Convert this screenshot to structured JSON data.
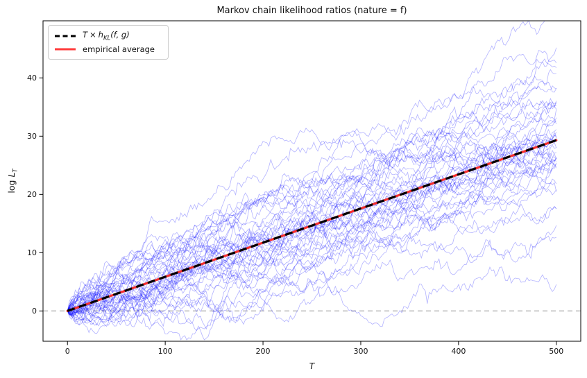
{
  "chart_data": {
    "type": "line",
    "title": "Markov chain likelihood ratios (nature = f)",
    "xlabel": "T",
    "ylabel": "log L_T",
    "ylabel_parts": {
      "prefix": "log",
      "var": "L",
      "sub": "T"
    },
    "xlim": [
      -25,
      525
    ],
    "ylim": [
      -5.2,
      49.8
    ],
    "xticks": [
      0,
      100,
      200,
      300,
      400,
      500
    ],
    "yticks": [
      0,
      10,
      20,
      30,
      40
    ],
    "grid": false,
    "legend": {
      "position": "upper-left",
      "entries": [
        {
          "label": "T × h_KL(f, g)",
          "parts": {
            "t": "T",
            "times": "×",
            "h": "h",
            "sub": "KL",
            "args": "(f, g)"
          },
          "line_style": "dashed",
          "color": "#000000"
        },
        {
          "label": "empirical average",
          "line_style": "solid",
          "color": "#ff3b3b"
        }
      ]
    },
    "series": [
      {
        "name": "T × h_KL(f, g)",
        "role": "kl-reference-line",
        "x": [
          0,
          500
        ],
        "y": [
          0,
          29.3
        ],
        "slope_per_step": 0.0586,
        "color": "#000000",
        "style": "dashed",
        "dash": [
          11,
          6.5
        ],
        "width": 3.2
      },
      {
        "name": "empirical average",
        "role": "empirical-average-line",
        "x": [
          0,
          500
        ],
        "y": [
          0,
          29.3
        ],
        "color": "#f52f2f",
        "style": "solid",
        "width": 3.2
      },
      {
        "name": "zero baseline",
        "role": "zero-baseline",
        "y_value": 0,
        "color": "#b3b3b3",
        "style": "dashed",
        "dash": [
          7,
          5
        ],
        "width": 1.3
      }
    ],
    "ensemble": {
      "name": "simulated log-likelihood-ratio trajectories",
      "n_traces": 45,
      "t_start": 0,
      "t_max": 500,
      "t_step": 2,
      "start_value": 0,
      "drift_per_step": 0.0586,
      "noise_sigma_per_step": 0.42,
      "final_value_range_observed": [
        10,
        47
      ],
      "early_min_observed": -3,
      "color": "#0000ff",
      "opacity": 0.3,
      "line_width": 0.8,
      "seed": 7
    }
  }
}
